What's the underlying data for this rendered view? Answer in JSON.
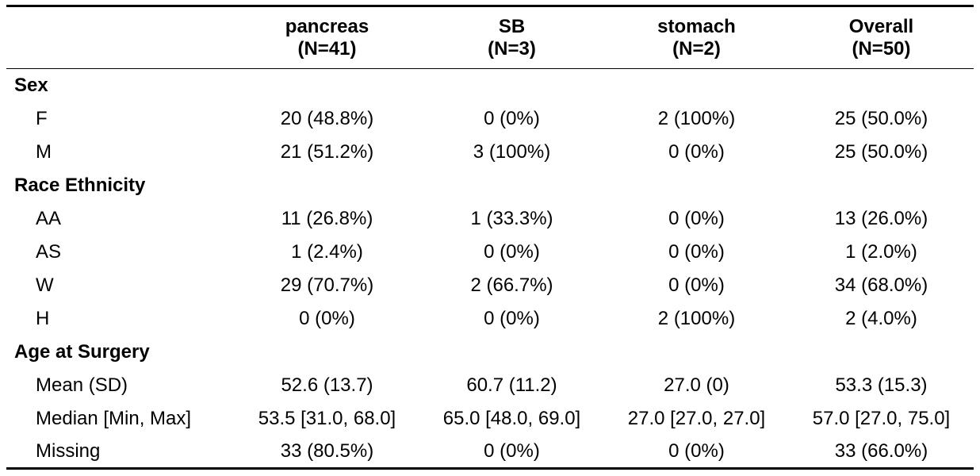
{
  "header": {
    "columns": [
      {
        "name": "pancreas",
        "n": "(N=41)"
      },
      {
        "name": "SB",
        "n": "(N=3)"
      },
      {
        "name": "stomach",
        "n": "(N=2)"
      },
      {
        "name": "Overall",
        "n": "(N=50)"
      }
    ]
  },
  "groups": [
    {
      "label": "Sex",
      "rows": [
        {
          "label": "F",
          "values": [
            "20 (48.8%)",
            "0 (0%)",
            "2 (100%)",
            "25 (50.0%)"
          ]
        },
        {
          "label": "M",
          "values": [
            "21 (51.2%)",
            "3 (100%)",
            "0 (0%)",
            "25 (50.0%)"
          ]
        }
      ]
    },
    {
      "label": "Race Ethnicity",
      "rows": [
        {
          "label": "AA",
          "values": [
            "11 (26.8%)",
            "1 (33.3%)",
            "0 (0%)",
            "13 (26.0%)"
          ]
        },
        {
          "label": "AS",
          "values": [
            "1 (2.4%)",
            "0 (0%)",
            "0 (0%)",
            "1 (2.0%)"
          ]
        },
        {
          "label": "W",
          "values": [
            "29 (70.7%)",
            "2 (66.7%)",
            "0 (0%)",
            "34 (68.0%)"
          ]
        },
        {
          "label": "H",
          "values": [
            "0 (0%)",
            "0 (0%)",
            "2 (100%)",
            "2 (4.0%)"
          ]
        }
      ]
    },
    {
      "label": "Age at Surgery",
      "rows": [
        {
          "label": "Mean (SD)",
          "values": [
            "52.6 (13.7)",
            "60.7 (11.2)",
            "27.0 (0)",
            "53.3 (15.3)"
          ]
        },
        {
          "label": "Median [Min, Max]",
          "values": [
            "53.5 [31.0, 68.0]",
            "65.0 [48.0, 69.0]",
            "27.0 [27.0, 27.0]",
            "57.0 [27.0, 75.0]"
          ]
        },
        {
          "label": "Missing",
          "values": [
            "33 (80.5%)",
            "0 (0%)",
            "0 (0%)",
            "33 (66.0%)"
          ]
        }
      ]
    }
  ]
}
